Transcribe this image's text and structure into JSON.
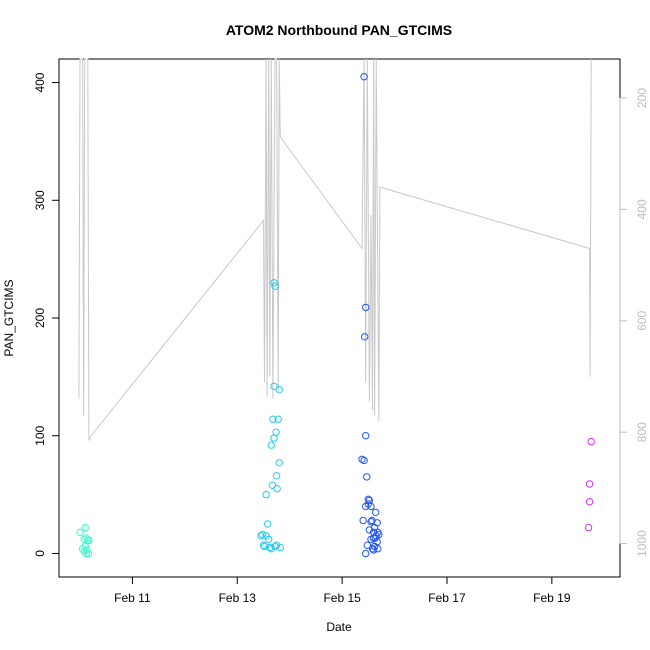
{
  "chart_data": {
    "type": "scatter",
    "title": "ATOM2 Northbound PAN_GTCIMS",
    "xlabel": "Date",
    "ylabel": "PAN_GTCIMS",
    "ylim": [
      -20,
      420
    ],
    "y_ticks": [
      0,
      100,
      200,
      300,
      400
    ],
    "x_range_days": [
      9.6,
      20.3
    ],
    "x_ticks": [
      {
        "label": "Feb 11",
        "day": 11
      },
      {
        "label": "Feb 13",
        "day": 13
      },
      {
        "label": "Feb 15",
        "day": 15
      },
      {
        "label": "Feb 17",
        "day": 17
      },
      {
        "label": "Feb 19",
        "day": 19
      }
    ],
    "y2_axis": {
      "lim_top": 130,
      "lim_bottom": 1060,
      "ticks": [
        200,
        400,
        600,
        800,
        1000
      ],
      "color": "#bdbdbd",
      "note": "secondary axis is reversed (pressure-like), no label"
    },
    "series": [
      {
        "color": "#33ffcc",
        "points": [
          [
            10.0,
            18
          ],
          [
            10.05,
            4
          ],
          [
            10.08,
            12
          ],
          [
            10.08,
            2
          ],
          [
            10.1,
            22
          ],
          [
            10.1,
            6
          ],
          [
            10.12,
            0
          ],
          [
            10.12,
            13
          ],
          [
            10.13,
            3
          ],
          [
            10.15,
            11
          ],
          [
            10.16,
            0
          ],
          [
            10.17,
            11
          ]
        ]
      },
      {
        "color": "#22ccee",
        "points": [
          [
            13.45,
            15
          ],
          [
            13.48,
            16
          ],
          [
            13.5,
            7
          ],
          [
            13.52,
            6
          ],
          [
            13.55,
            15
          ],
          [
            13.55,
            50
          ],
          [
            13.58,
            25
          ],
          [
            13.6,
            12
          ],
          [
            13.62,
            5
          ],
          [
            13.65,
            4
          ],
          [
            13.65,
            92
          ],
          [
            13.67,
            58
          ],
          [
            13.68,
            114
          ],
          [
            13.7,
            142
          ],
          [
            13.7,
            230
          ],
          [
            13.72,
            227
          ],
          [
            13.7,
            98
          ],
          [
            13.72,
            6
          ],
          [
            13.74,
            103
          ],
          [
            13.75,
            66
          ],
          [
            13.75,
            7
          ],
          [
            13.76,
            55
          ],
          [
            13.78,
            114
          ],
          [
            13.8,
            139
          ],
          [
            13.8,
            77
          ],
          [
            13.82,
            5
          ]
        ]
      },
      {
        "color": "#2255ee",
        "points": [
          [
            15.38,
            80
          ],
          [
            15.4,
            28
          ],
          [
            15.42,
            405
          ],
          [
            15.42,
            79
          ],
          [
            15.43,
            184
          ],
          [
            15.45,
            100
          ],
          [
            15.45,
            209
          ],
          [
            15.45,
            40
          ],
          [
            15.45,
            0
          ],
          [
            15.47,
            65
          ],
          [
            15.48,
            7
          ],
          [
            15.5,
            42
          ],
          [
            15.5,
            46
          ],
          [
            15.52,
            45
          ],
          [
            15.52,
            20
          ],
          [
            15.55,
            40
          ],
          [
            15.55,
            12
          ],
          [
            15.55,
            27
          ],
          [
            15.57,
            28
          ],
          [
            15.58,
            4
          ],
          [
            15.6,
            13
          ],
          [
            15.6,
            18
          ],
          [
            15.6,
            3
          ],
          [
            15.62,
            6
          ],
          [
            15.62,
            22
          ],
          [
            15.63,
            13
          ],
          [
            15.64,
            35
          ],
          [
            15.65,
            15
          ],
          [
            15.67,
            26
          ],
          [
            15.67,
            10
          ],
          [
            15.68,
            18
          ],
          [
            15.68,
            4
          ],
          [
            15.7,
            16
          ]
        ]
      },
      {
        "color": "#cc33ee",
        "points": [
          [
            19.7,
            22
          ],
          [
            19.72,
            44
          ],
          [
            19.72,
            59
          ],
          [
            19.75,
            95
          ]
        ]
      }
    ],
    "overlay_line": {
      "color": "#c8c8c8",
      "axis": "y2",
      "points": [
        [
          9.98,
          740
        ],
        [
          10.0,
          130
        ],
        [
          10.05,
          130
        ],
        [
          10.07,
          770
        ],
        [
          10.09,
          130
        ],
        [
          10.1,
          130
        ],
        [
          10.12,
          130
        ],
        [
          10.15,
          130
        ],
        [
          10.17,
          815
        ],
        [
          10.2,
          808
        ],
        [
          13.5,
          420
        ],
        [
          13.52,
          710
        ],
        [
          13.55,
          130
        ],
        [
          13.57,
          735
        ],
        [
          13.6,
          130
        ],
        [
          13.62,
          700
        ],
        [
          13.65,
          130
        ],
        [
          13.68,
          740
        ],
        [
          13.72,
          130
        ],
        [
          13.75,
          130
        ],
        [
          13.78,
          730
        ],
        [
          13.8,
          130
        ],
        [
          13.82,
          270
        ],
        [
          15.38,
          470
        ],
        [
          15.42,
          130
        ],
        [
          15.45,
          710
        ],
        [
          15.48,
          130
        ],
        [
          15.52,
          745
        ],
        [
          15.55,
          410
        ],
        [
          15.58,
          760
        ],
        [
          15.6,
          130
        ],
        [
          15.62,
          770
        ],
        [
          15.65,
          130
        ],
        [
          15.7,
          780
        ],
        [
          15.72,
          360
        ],
        [
          19.72,
          470
        ],
        [
          19.73,
          700
        ],
        [
          19.75,
          130
        ]
      ]
    }
  }
}
